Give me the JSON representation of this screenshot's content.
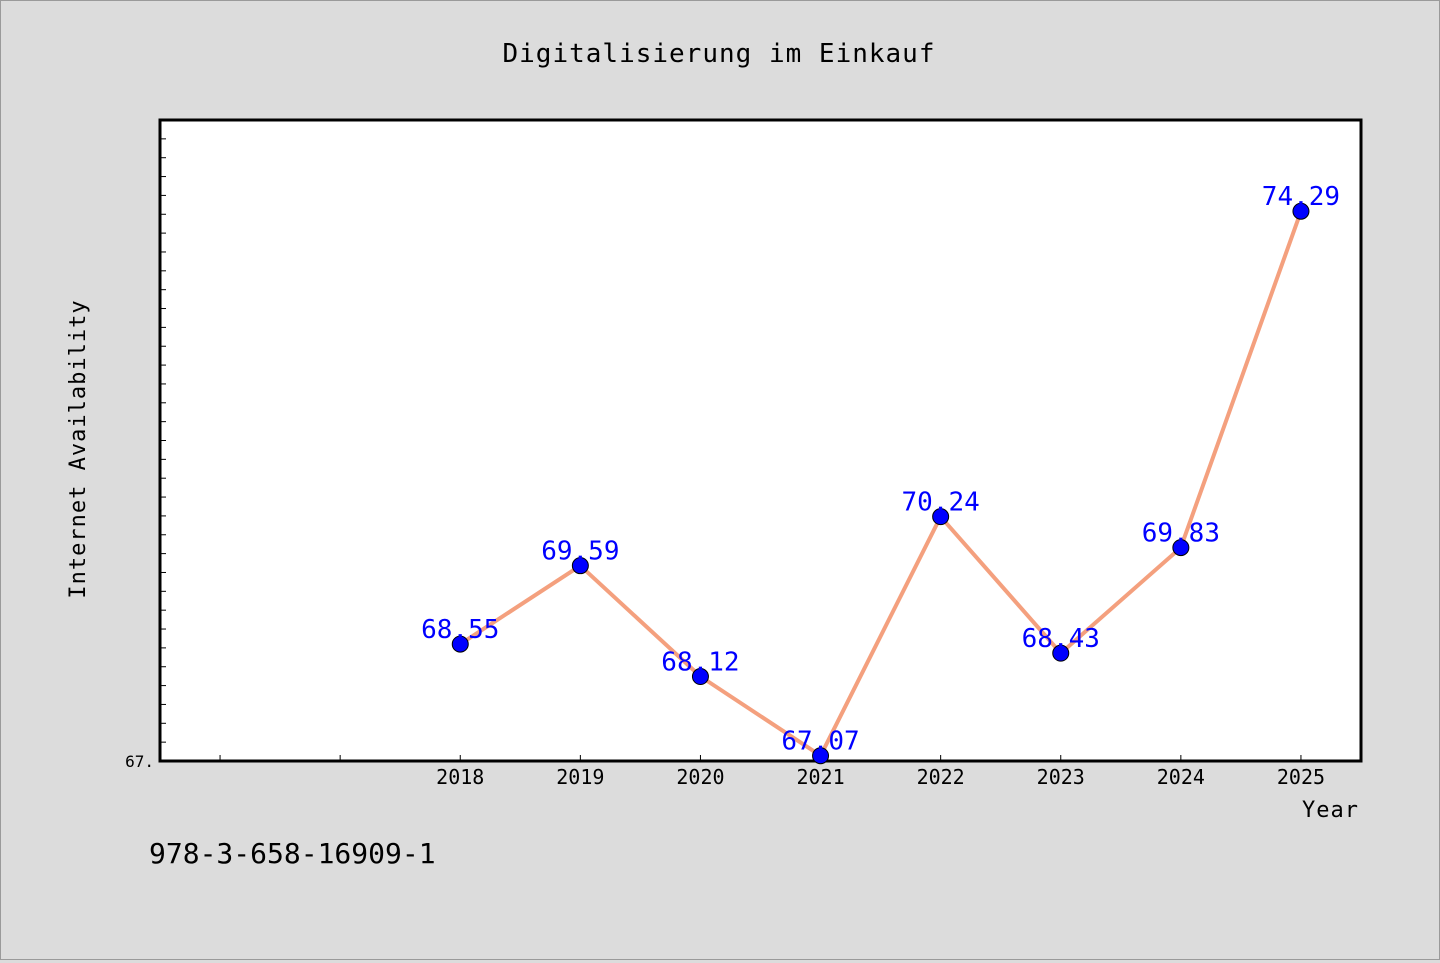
{
  "chart_data": {
    "type": "line",
    "title": "Digitalisierung im Einkauf",
    "xlabel": "Year",
    "ylabel": "Internet Availability",
    "x": [
      2018,
      2019,
      2020,
      2021,
      2022,
      2023,
      2024,
      2025
    ],
    "categories": [
      "2018",
      "2019",
      "2020",
      "2021",
      "2022",
      "2023",
      "2024",
      "2025"
    ],
    "series": [
      {
        "values": [
          68.55,
          69.59,
          68.12,
          67.07,
          70.24,
          68.43,
          69.83,
          74.29
        ],
        "labels": [
          "68.55",
          "69.59",
          "68.12",
          "67.07",
          "70.24",
          "68.43",
          "69.83",
          "74.29"
        ],
        "line_color": "#f4a07e",
        "marker_color": "#0000ff"
      }
    ],
    "xlim": [
      2015.5,
      2025.5
    ],
    "ylim": [
      67.0,
      75.5
    ],
    "y_visible_tick_label": "67.",
    "grid": false,
    "legend": "none"
  },
  "footer": {
    "identifier": "978-3-658-16909-1"
  },
  "colors": {
    "background": "#dcdcdc",
    "plot_background": "#ffffff",
    "axis": "#000000"
  }
}
